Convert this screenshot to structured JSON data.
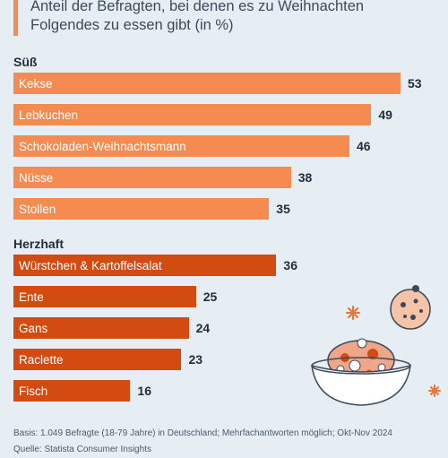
{
  "subtitle": "Anteil der Befragten, bei denen es zu Weihnachten Folgendes zu essen gibt (in %)",
  "colors": {
    "sweet": "#f58b50",
    "savory": "#d44b12",
    "background": "#e6eef3"
  },
  "chart_data": {
    "type": "bar",
    "orientation": "horizontal",
    "unit": "%",
    "groups": [
      {
        "name": "Süß",
        "categories": [
          "Kekse",
          "Lebkuchen",
          "Schokoladen-Weihnachtsmann",
          "Nüsse",
          "Stollen"
        ],
        "values": [
          53,
          49,
          46,
          38,
          35
        ]
      },
      {
        "name": "Herzhaft",
        "categories": [
          "Würstchen & Kartoffelsalat",
          "Ente",
          "Gans",
          "Raclette",
          "Fisch"
        ],
        "values": [
          36,
          25,
          24,
          23,
          16
        ]
      }
    ]
  },
  "footnote": {
    "basis": "Basis: 1.049 Befragte (18-79 Jahre) in Deutschland; Mehrfachantworten möglich; Okt-Nov 2024",
    "source": "Quelle: Statista Consumer Insights"
  },
  "illustration": {
    "icon": "cookie-bowl-icon"
  }
}
